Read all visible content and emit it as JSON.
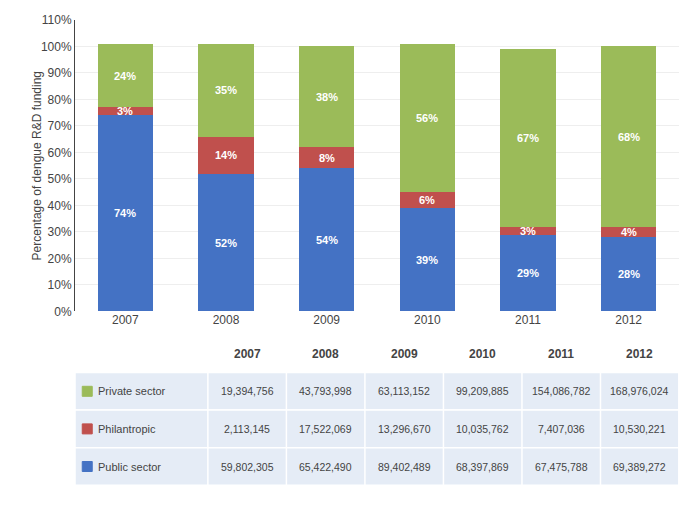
{
  "chart_data": {
    "type": "bar",
    "stacked": true,
    "ylabel": "Percentage of dengue R&D funding",
    "categories": [
      "2007",
      "2008",
      "2009",
      "2010",
      "2011",
      "2012"
    ],
    "series": [
      {
        "name": "Public sector",
        "color": "#4472C4",
        "values": [
          74,
          52,
          54,
          39,
          29,
          28
        ],
        "value_labels": [
          "74%",
          "52%",
          "54%",
          "39%",
          "29%",
          "28%"
        ],
        "amounts": [
          "59,802,305",
          "65,422,490",
          "89,402,489",
          "68,397,869",
          "67,475,788",
          "69,389,272"
        ]
      },
      {
        "name": "Philantropic",
        "color": "#C0504D",
        "values": [
          3,
          14,
          8,
          6,
          3,
          4
        ],
        "value_labels": [
          "3%",
          "14%",
          "8%",
          "6%",
          "3%",
          "4%"
        ],
        "amounts": [
          "2,113,145",
          "17,522,069",
          "13,296,670",
          "10,035,762",
          "7,407,036",
          "10,530,221"
        ]
      },
      {
        "name": "Private sector",
        "color": "#9BBB59",
        "values": [
          24,
          35,
          38,
          56,
          67,
          68
        ],
        "value_labels": [
          "24%",
          "35%",
          "38%",
          "56%",
          "67%",
          "68%"
        ],
        "amounts": [
          "19,394,756",
          "43,793,998",
          "63,113,152",
          "99,209,885",
          "154,086,782",
          "168,976,024"
        ]
      }
    ],
    "data_labels": true,
    "grid": true,
    "ylim": [
      0,
      110
    ],
    "yticks": [
      {
        "value": 0,
        "label": "0%"
      },
      {
        "value": 10,
        "label": "10%"
      },
      {
        "value": 20,
        "label": "20%"
      },
      {
        "value": 30,
        "label": "30%"
      },
      {
        "value": 40,
        "label": "40%"
      },
      {
        "value": 50,
        "label": "50%"
      },
      {
        "value": 60,
        "label": "60%"
      },
      {
        "value": 70,
        "label": "70%"
      },
      {
        "value": 80,
        "label": "80%"
      },
      {
        "value": 90,
        "label": "90%"
      },
      {
        "value": 100,
        "label": "100%"
      },
      {
        "value": 110,
        "label": "110%"
      }
    ]
  }
}
